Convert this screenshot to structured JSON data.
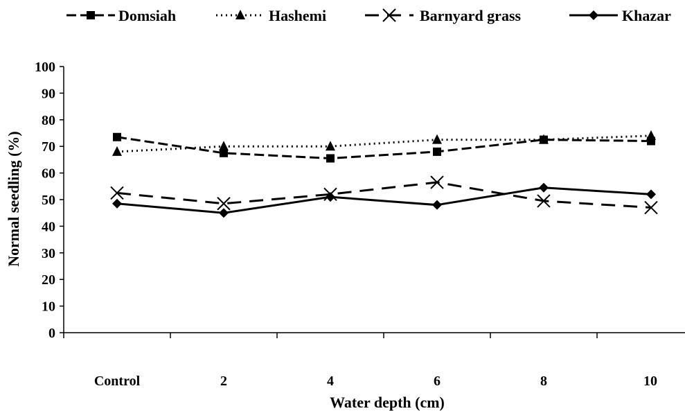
{
  "chart_data": {
    "type": "line",
    "title": "",
    "xlabel": "Water depth (cm)",
    "ylabel": "Normal seedling (%)",
    "categories": [
      "Control",
      "2",
      "4",
      "6",
      "8",
      "10"
    ],
    "ylim": [
      0,
      100
    ],
    "yticks": [
      0,
      10,
      20,
      30,
      40,
      50,
      60,
      70,
      80,
      90,
      100
    ],
    "grid": false,
    "legend_position": "top",
    "series": [
      {
        "name": "Domsiah",
        "values": [
          73.5,
          67.5,
          65.5,
          68.0,
          72.5,
          72.0
        ],
        "line_style": "dashed",
        "marker": "square",
        "color": "#000000"
      },
      {
        "name": "Hashemi",
        "values": [
          68.0,
          70.0,
          70.0,
          72.5,
          72.5,
          74.0
        ],
        "line_style": "dotted",
        "marker": "triangle",
        "color": "#000000"
      },
      {
        "name": "Barnyard grass",
        "values": [
          52.5,
          48.5,
          52.0,
          56.5,
          49.5,
          47.0
        ],
        "line_style": "long-dash",
        "marker": "x",
        "color": "#000000"
      },
      {
        "name": "Khazar",
        "values": [
          48.5,
          45.0,
          51.0,
          48.0,
          54.5,
          52.0
        ],
        "line_style": "solid",
        "marker": "diamond",
        "color": "#000000"
      }
    ]
  }
}
